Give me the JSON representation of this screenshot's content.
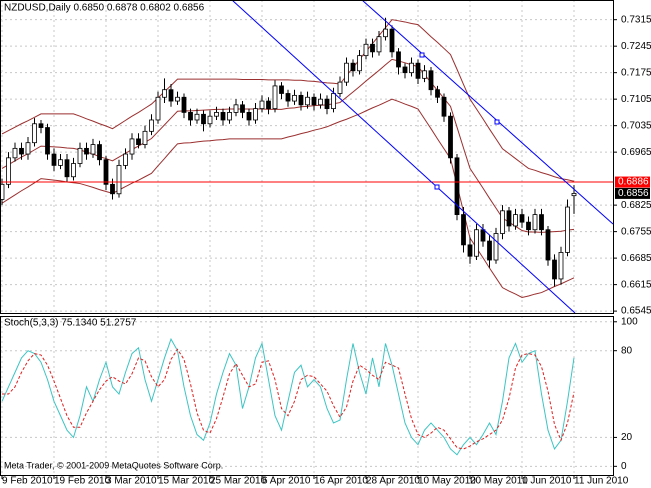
{
  "chart_data": [
    {
      "type": "candlestick",
      "title": "NZDUSD,Daily  0.6850 0.6878 0.6802 0.6856",
      "categories": [
        "9 Feb 2010",
        null,
        null,
        null,
        null,
        null,
        null,
        null,
        "19 Feb 2010",
        null,
        null,
        null,
        null,
        null,
        null,
        null,
        "3 Mar 2010",
        null,
        null,
        null,
        null,
        null,
        null,
        null,
        "15 Mar 2010",
        null,
        null,
        null,
        null,
        null,
        null,
        null,
        "25 Mar 2010",
        null,
        null,
        null,
        null,
        null,
        null,
        null,
        "6 Apr 2010",
        null,
        null,
        null,
        null,
        null,
        null,
        null,
        "16 Apr 2010",
        null,
        null,
        null,
        null,
        null,
        null,
        null,
        "28 Apr 2010",
        null,
        null,
        null,
        null,
        null,
        null,
        null,
        "10 May 2010",
        null,
        null,
        null,
        null,
        null,
        null,
        null,
        "20 May 2010",
        null,
        null,
        null,
        null,
        null,
        null,
        null,
        "1 Jun 2010",
        null,
        null,
        null,
        null,
        null,
        null,
        null,
        "11 Jun 2010"
      ],
      "open": [
        0.684,
        0.688,
        0.695,
        0.6975,
        0.696,
        0.699,
        0.704,
        0.703,
        0.696,
        0.693,
        0.6945,
        0.69,
        0.6935,
        0.6975,
        0.696,
        0.6985,
        0.6945,
        0.688,
        0.6855,
        0.693,
        0.696,
        0.7,
        0.6985,
        0.702,
        0.705,
        0.711,
        0.713,
        0.71,
        0.711,
        0.707,
        0.705,
        0.7065,
        0.704,
        0.706,
        0.707,
        0.705,
        0.707,
        0.709,
        0.707,
        0.705,
        0.708,
        0.71,
        0.708,
        0.714,
        0.712,
        0.71,
        0.7115,
        0.709,
        0.711,
        0.709,
        0.7105,
        0.708,
        0.712,
        0.715,
        0.72,
        0.718,
        0.722,
        0.725,
        0.723,
        0.727,
        0.729,
        0.723,
        0.719,
        0.7175,
        0.72,
        0.716,
        0.718,
        0.713,
        0.711,
        0.706,
        0.695,
        0.68,
        0.672,
        0.669,
        0.676,
        0.673,
        0.668,
        0.675,
        0.681,
        0.677,
        0.68,
        0.678,
        0.676,
        0.68,
        0.676,
        0.668,
        0.663,
        0.67,
        0.685
      ],
      "high": [
        0.6895,
        0.6965,
        0.699,
        0.699,
        0.7005,
        0.7055,
        0.705,
        0.704,
        0.6975,
        0.696,
        0.696,
        0.695,
        0.699,
        0.699,
        0.7,
        0.6995,
        0.6955,
        0.6895,
        0.6945,
        0.6975,
        0.7015,
        0.7015,
        0.7035,
        0.7065,
        0.7125,
        0.716,
        0.7145,
        0.7125,
        0.712,
        0.708,
        0.708,
        0.7075,
        0.7075,
        0.7085,
        0.708,
        0.7085,
        0.7105,
        0.71,
        0.708,
        0.7095,
        0.7115,
        0.711,
        0.7155,
        0.715,
        0.713,
        0.713,
        0.7125,
        0.7125,
        0.712,
        0.712,
        0.7115,
        0.7135,
        0.7165,
        0.7215,
        0.721,
        0.7235,
        0.7265,
        0.7265,
        0.7285,
        0.732,
        0.73,
        0.724,
        0.72,
        0.7215,
        0.721,
        0.7195,
        0.719,
        0.714,
        0.712,
        0.707,
        0.696,
        0.682,
        0.674,
        0.6775,
        0.6775,
        0.6745,
        0.6765,
        0.6825,
        0.682,
        0.6815,
        0.6815,
        0.6795,
        0.6815,
        0.6815,
        0.677,
        0.6695,
        0.6715,
        0.684,
        0.6878
      ],
      "low": [
        0.6825,
        0.687,
        0.694,
        0.6945,
        0.6945,
        0.698,
        0.7015,
        0.6945,
        0.6915,
        0.692,
        0.6885,
        0.689,
        0.6925,
        0.6945,
        0.695,
        0.693,
        0.6865,
        0.684,
        0.6845,
        0.692,
        0.6945,
        0.6975,
        0.6975,
        0.701,
        0.704,
        0.7095,
        0.7085,
        0.709,
        0.7055,
        0.7035,
        0.704,
        0.702,
        0.703,
        0.705,
        0.7035,
        0.704,
        0.706,
        0.7055,
        0.7035,
        0.704,
        0.707,
        0.7065,
        0.707,
        0.7105,
        0.7085,
        0.709,
        0.7075,
        0.708,
        0.7075,
        0.708,
        0.7065,
        0.707,
        0.711,
        0.714,
        0.7165,
        0.717,
        0.721,
        0.7215,
        0.722,
        0.726,
        0.7215,
        0.717,
        0.716,
        0.7165,
        0.7145,
        0.715,
        0.7115,
        0.7095,
        0.7045,
        0.6935,
        0.6785,
        0.67,
        0.667,
        0.668,
        0.6715,
        0.666,
        0.667,
        0.6735,
        0.6755,
        0.676,
        0.6765,
        0.6745,
        0.675,
        0.6745,
        0.6665,
        0.661,
        0.6615,
        0.669,
        0.6802
      ],
      "close": [
        0.688,
        0.695,
        0.6975,
        0.696,
        0.699,
        0.704,
        0.703,
        0.696,
        0.693,
        0.6945,
        0.69,
        0.6935,
        0.6975,
        0.696,
        0.6985,
        0.6945,
        0.688,
        0.6855,
        0.693,
        0.696,
        0.7,
        0.6985,
        0.702,
        0.705,
        0.711,
        0.713,
        0.71,
        0.711,
        0.707,
        0.705,
        0.7065,
        0.704,
        0.706,
        0.707,
        0.705,
        0.707,
        0.709,
        0.707,
        0.705,
        0.708,
        0.71,
        0.708,
        0.714,
        0.712,
        0.71,
        0.7115,
        0.709,
        0.711,
        0.709,
        0.7105,
        0.708,
        0.712,
        0.715,
        0.72,
        0.718,
        0.722,
        0.725,
        0.723,
        0.727,
        0.729,
        0.723,
        0.719,
        0.7175,
        0.72,
        0.716,
        0.718,
        0.713,
        0.711,
        0.706,
        0.695,
        0.68,
        0.672,
        0.669,
        0.676,
        0.673,
        0.668,
        0.675,
        0.681,
        0.677,
        0.68,
        0.678,
        0.676,
        0.68,
        0.676,
        0.668,
        0.663,
        0.67,
        0.682,
        0.6856
      ],
      "bull_color": "#ffffff",
      "bear_color": "#000000",
      "series": [
        {
          "color": "#9b2f2f",
          "values": [
            0.7013,
            0.7022,
            0.7031,
            0.704,
            0.7048,
            0.7057,
            0.7066,
            0.7066,
            0.7066,
            0.7066,
            0.7066,
            0.7066,
            0.706,
            0.7053,
            0.7047,
            0.704,
            0.7034,
            0.7027,
            0.7038,
            0.7049,
            0.706,
            0.707,
            0.7081,
            0.7092,
            0.7108,
            0.7125,
            0.7141,
            0.7158,
            0.7158,
            0.7158,
            0.7158,
            0.7158,
            0.7158,
            0.7158,
            0.7158,
            0.7158,
            0.7158,
            0.7157,
            0.7157,
            0.7157,
            0.7157,
            0.7156,
            0.7156,
            0.7156,
            0.7156,
            0.7155,
            0.7155,
            0.7153,
            0.7152,
            0.715,
            0.7148,
            0.7147,
            0.7145,
            0.7167,
            0.7188,
            0.721,
            0.7231,
            0.7252,
            0.7273,
            0.7294,
            0.7315,
            0.7312,
            0.7309,
            0.7305,
            0.7302,
            0.7286,
            0.727,
            0.7255,
            0.7239,
            0.7223,
            0.7184,
            0.7144,
            0.7105,
            0.7079,
            0.7053,
            0.7026,
            0.7,
            0.6974,
            0.6961,
            0.6948,
            0.6935,
            0.6922,
            0.6917,
            0.6911,
            0.6906,
            0.69,
            0.6895,
            0.6892,
            0.6888
          ]
        },
        {
          "color": "#9b2f2f",
          "values": [
            0.6922,
            0.6932,
            0.6942,
            0.6952,
            0.6961,
            0.6971,
            0.6981,
            0.698,
            0.6979,
            0.6978,
            0.6976,
            0.6975,
            0.6971,
            0.6965,
            0.696,
            0.6953,
            0.6948,
            0.6942,
            0.6952,
            0.6962,
            0.6972,
            0.6981,
            0.6991,
            0.7001,
            0.7019,
            0.7037,
            0.7055,
            0.7073,
            0.7074,
            0.7074,
            0.7075,
            0.7076,
            0.7077,
            0.7078,
            0.7078,
            0.7079,
            0.7079,
            0.7079,
            0.7079,
            0.7079,
            0.7079,
            0.7078,
            0.7078,
            0.7078,
            0.7081,
            0.7082,
            0.7085,
            0.7086,
            0.7088,
            0.7089,
            0.709,
            0.7093,
            0.7096,
            0.711,
            0.7124,
            0.7138,
            0.7153,
            0.7167,
            0.7181,
            0.7196,
            0.721,
            0.7206,
            0.7201,
            0.7196,
            0.7191,
            0.717,
            0.7149,
            0.7128,
            0.7107,
            0.7086,
            0.7031,
            0.6976,
            0.6922,
            0.6896,
            0.687,
            0.6843,
            0.6817,
            0.6791,
            0.678,
            0.6769,
            0.6758,
            0.6754,
            0.6754,
            0.6753,
            0.6754,
            0.6755,
            0.6756,
            0.6759,
            0.6761
          ]
        },
        {
          "color": "#9b2f2f",
          "values": [
            0.683,
            0.6841,
            0.6852,
            0.6863,
            0.6873,
            0.6884,
            0.6895,
            0.6893,
            0.6891,
            0.6889,
            0.6886,
            0.6884,
            0.6882,
            0.6877,
            0.6872,
            0.6866,
            0.6861,
            0.6856,
            0.6865,
            0.6874,
            0.6883,
            0.6891,
            0.69,
            0.6909,
            0.6929,
            0.6948,
            0.6968,
            0.6987,
            0.6989,
            0.699,
            0.6992,
            0.6994,
            0.6995,
            0.6997,
            0.6998,
            0.7,
            0.7,
            0.7,
            0.7,
            0.7,
            0.7,
            0.7,
            0.7,
            0.7,
            0.7005,
            0.7009,
            0.7014,
            0.7018,
            0.7023,
            0.7027,
            0.7032,
            0.7039,
            0.7046,
            0.7052,
            0.7059,
            0.7066,
            0.7074,
            0.7082,
            0.7089,
            0.7097,
            0.7105,
            0.7099,
            0.7092,
            0.7086,
            0.7079,
            0.7053,
            0.7027,
            0.7,
            0.6974,
            0.6948,
            0.6878,
            0.6808,
            0.6738,
            0.6712,
            0.6686,
            0.6659,
            0.6633,
            0.6607,
            0.6598,
            0.659,
            0.6581,
            0.6585,
            0.659,
            0.6594,
            0.6602,
            0.661,
            0.6617,
            0.6625,
            0.6633
          ]
        }
      ],
      "levels": [
        {
          "value": 0.6886,
          "color": "#ff0000",
          "line": true
        },
        {
          "value": 0.6856,
          "color": "#000000",
          "line": false
        }
      ],
      "ylim": [
        0.654,
        0.7367
      ],
      "yticks": [
        0.7315,
        0.7245,
        0.7175,
        0.7105,
        0.7035,
        0.6965,
        0.6825,
        0.6755,
        0.6685,
        0.6615,
        0.6545
      ],
      "grid": true
    },
    {
      "type": "line",
      "title": "Stoch(5,3,3) 75.1340 51.2757",
      "annotation": "Meta Trader, © 2001-2009 MetaQuotes Software Corp.",
      "series": [
        {
          "color": "#3cc4c4",
          "dashed": false,
          "values": [
            45,
            55,
            65,
            75,
            80,
            78,
            72,
            60,
            45,
            35,
            25,
            20,
            35,
            55,
            45,
            60,
            72,
            55,
            50,
            65,
            78,
            82,
            60,
            45,
            60,
            75,
            88,
            80,
            55,
            35,
            22,
            18,
            30,
            50,
            65,
            78,
            70,
            40,
            55,
            75,
            85,
            60,
            35,
            25,
            45,
            65,
            70,
            55,
            60,
            55,
            40,
            30,
            32,
            60,
            85,
            65,
            50,
            75,
            55,
            85,
            70,
            50,
            30,
            20,
            15,
            25,
            30,
            25,
            20,
            12,
            8,
            15,
            20,
            15,
            22,
            30,
            22,
            45,
            75,
            85,
            72,
            78,
            80,
            50,
            25,
            12,
            18,
            45,
            75.134
          ]
        },
        {
          "color": "#e02020",
          "dashed": true,
          "values": [
            50,
            50,
            55,
            65,
            73,
            78,
            77,
            70,
            59,
            47,
            35,
            27,
            27,
            37,
            45,
            53,
            59,
            62,
            59,
            57,
            64,
            75,
            73,
            62,
            55,
            60,
            74,
            81,
            74,
            57,
            37,
            25,
            23,
            33,
            48,
            64,
            71,
            63,
            55,
            57,
            72,
            73,
            60,
            40,
            35,
            45,
            60,
            63,
            62,
            57,
            52,
            42,
            34,
            41,
            59,
            70,
            67,
            63,
            60,
            72,
            70,
            68,
            50,
            33,
            22,
            20,
            23,
            27,
            25,
            19,
            13,
            12,
            14,
            17,
            19,
            22,
            25,
            32,
            47,
            68,
            77,
            78,
            77,
            69,
            52,
            29,
            18,
            30,
            51.2757
          ]
        }
      ],
      "ylim": [
        -6,
        104
      ],
      "yticks": [
        100,
        80,
        20,
        0
      ],
      "grid": true
    }
  ]
}
